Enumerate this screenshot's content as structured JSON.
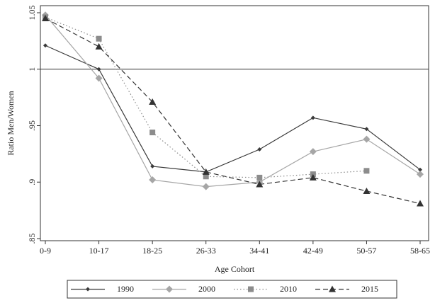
{
  "chart_data": {
    "type": "line",
    "x_label": "Age Cohort",
    "y_label": "Ratio Men/Women",
    "categories": [
      "0-9",
      "10-17",
      "18-25",
      "26-33",
      "34-41",
      "42-49",
      "50-57",
      "58-65"
    ],
    "series": [
      {
        "name": "1990",
        "color": "#3a3a3a",
        "line_style": "solid",
        "marker": "diamond-small",
        "values": [
          1.021,
          1.0,
          0.914,
          0.909,
          0.929,
          0.957,
          0.947,
          0.911
        ]
      },
      {
        "name": "2000",
        "color": "#a6a6a6",
        "line_style": "solid",
        "marker": "diamond",
        "values": [
          1.048,
          0.992,
          0.902,
          0.896,
          0.9,
          0.927,
          0.938,
          0.907
        ]
      },
      {
        "name": "2010",
        "color": "#8c8c8c",
        "line_style": "dotted",
        "marker": "square",
        "values": [
          1.046,
          1.027,
          0.944,
          0.905,
          0.904,
          0.907,
          0.91,
          null
        ]
      },
      {
        "name": "2015",
        "color": "#333333",
        "line_style": "dashed",
        "marker": "triangle",
        "values": [
          1.045,
          1.02,
          0.971,
          0.909,
          0.898,
          0.904,
          0.892,
          0.881
        ]
      }
    ],
    "reference_line": 1,
    "ylim": [
      0.85,
      1.05
    ],
    "yticks": [
      {
        "value": 0.85,
        "label": ".85"
      },
      {
        "value": 0.9,
        "label": ".9"
      },
      {
        "value": 0.95,
        "label": ".95"
      },
      1,
      1.05
    ]
  }
}
